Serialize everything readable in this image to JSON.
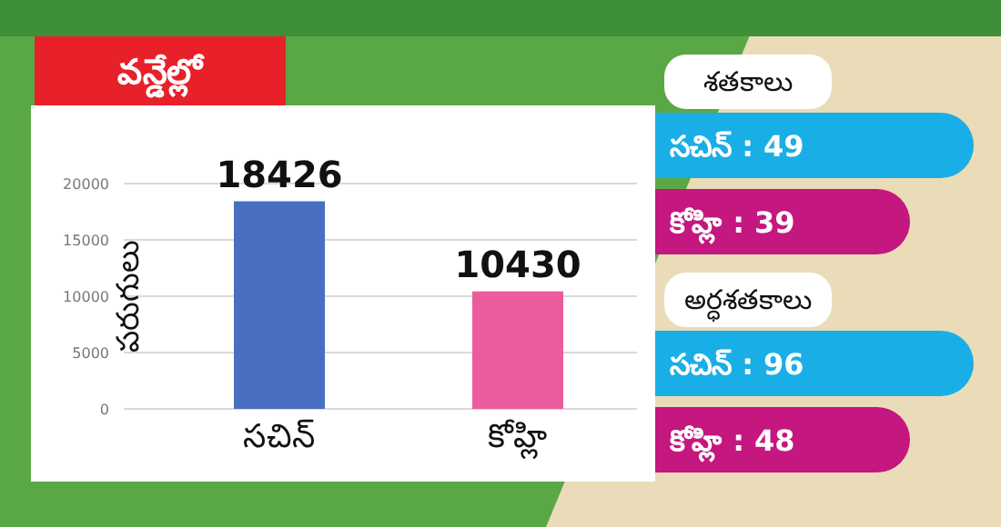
{
  "chart_data": [
    {
      "type": "bar",
      "title": "వన్డేల్లో",
      "ylabel": "పరుగులు",
      "categories": [
        "సచిన్",
        "కోహ్లి"
      ],
      "values": [
        18426,
        10430
      ],
      "colors": [
        "#4a6fc0",
        "#ea5c9c"
      ],
      "ylim": [
        0,
        20000
      ],
      "yticks": [
        0,
        5000,
        10000,
        15000,
        20000
      ],
      "grid": "y",
      "data_labels": true
    },
    {
      "type": "other",
      "title": "శతకాలు",
      "annotations": [
        "సచిన్ : 49",
        "కోహ్లి : 39"
      ]
    },
    {
      "type": "other",
      "title": "అర్ధశతకాలు",
      "annotations": [
        "సచిన్ : 96",
        "కోహ్లి : 48"
      ]
    }
  ]
}
